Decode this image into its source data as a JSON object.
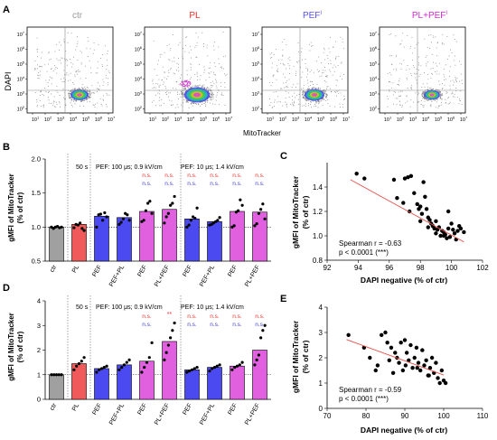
{
  "panelA": {
    "letter": "A",
    "titles": [
      {
        "text": "ctr",
        "color": "#9a9a9a"
      },
      {
        "text": "PL",
        "color": "#e8322b"
      },
      {
        "text": "PEF",
        "sup": "I",
        "color": "#5b52f0"
      },
      {
        "text": "PL+PEF",
        "sup": "I",
        "color": "#d02ad0"
      }
    ],
    "ylabel": "DAPI",
    "xlabel": "MitoTracker",
    "yticks": [
      "10^7",
      "10^6",
      "10^5",
      "10^4",
      "10^3",
      "10^2"
    ],
    "xticks": [
      "10^1",
      "10^2",
      "10^3",
      "10^4",
      "10^5",
      "10^6",
      "10^7"
    ]
  },
  "panelB": {
    "letter": "B",
    "ylabel_line1": "gMFI of MitoTracker",
    "ylabel_line2": "(% of ctr)",
    "yticks": [
      "2.0",
      "1.5",
      "1.0",
      "0.5"
    ],
    "groups_text": {
      "g1": "50 s",
      "g2": "PEF: 100 μs; 0.9 kV/cm",
      "g3": "PEF: 10 μs; 1.4 kV/cm"
    },
    "xlabels": [
      "ctr",
      "PL",
      "PEF",
      "PEF+PL",
      "PEF",
      "PL+PEF",
      "PEF",
      "PEF+PL",
      "PEF",
      "PL+PEF"
    ],
    "sig": [
      {
        "bar": 5,
        "red": "n.s.",
        "blue": "n.s."
      },
      {
        "bar": 6,
        "red": "n.s.",
        "blue": "n.s."
      },
      {
        "bar": 7,
        "red": "n.s.",
        "blue": "n.s."
      },
      {
        "bar": 8,
        "red": "n.s.",
        "blue": "n.s."
      },
      {
        "bar": 9,
        "red": "n.s.",
        "blue": "n.s."
      },
      {
        "bar": 10,
        "red": "n.s.",
        "blue": "n.s."
      }
    ]
  },
  "panelC": {
    "letter": "C",
    "ylabel_line1": "gMFI of MitoTracker",
    "ylabel_line2": "(% of ctr)",
    "xlabel": "DAPI negative (% of ctr)",
    "xticks": [
      "92",
      "94",
      "96",
      "98",
      "100",
      "102"
    ],
    "yticks": [
      "1.4",
      "1.2",
      "1.0",
      "0.8"
    ],
    "stat_line1": "Spearman r = -0.63",
    "stat_line2": "p < 0.0001 (***)"
  },
  "panelD": {
    "letter": "D",
    "ylabel_line1": "gMFI of MitoTracker",
    "ylabel_line2": "(% of ctr)",
    "yticks": [
      "4",
      "3",
      "2",
      "1",
      "0"
    ],
    "groups_text": {
      "g1": "50 s",
      "g2": "PEF: 100 μs; 0.9 kV/cm",
      "g3": "PEF: 10 μs; 1.4 kV/cm"
    },
    "xlabels": [
      "ctr",
      "PL",
      "PEF",
      "PEF+PL",
      "PEF",
      "PL+PEF",
      "PEF",
      "PEF+PL",
      "PEF",
      "PL+PEF"
    ],
    "sig_top": "**",
    "sig": [
      {
        "bar": 5,
        "red": "n.s.",
        "blue": "n.s."
      },
      {
        "bar": 7,
        "red": "n.s.",
        "blue": "n.s."
      },
      {
        "bar": 8,
        "red": "n.s.",
        "blue": "n.s."
      },
      {
        "bar": 9,
        "red": "n.s.",
        "blue": "n.s."
      },
      {
        "bar": 10,
        "red": "n.s.",
        "blue": "n.s."
      }
    ]
  },
  "panelE": {
    "letter": "E",
    "ylabel_line1": "gMFI of MitoTracker",
    "ylabel_line2": "(% of ctr)",
    "xlabel": "DAPI negative (% of ctr)",
    "xticks": [
      "70",
      "80",
      "90",
      "100",
      "110"
    ],
    "yticks": [
      "4",
      "3",
      "2",
      "1",
      "0"
    ],
    "stat_line1": "Spearman r = -0.59",
    "stat_line2": "p < 0.0001 (***)"
  },
  "chart_data": [
    {
      "type": "bar",
      "panel": "B",
      "categories": [
        "ctr",
        "PL",
        "PEF",
        "PEF+PL",
        "PEF",
        "PL+PEF",
        "PEF",
        "PEF+PL",
        "PEF",
        "PL+PEF"
      ],
      "values": [
        1.0,
        1.04,
        1.16,
        1.14,
        1.23,
        1.26,
        1.12,
        1.08,
        1.23,
        1.22
      ],
      "colors": [
        "#a0a0a0",
        "#f05a5a",
        "#4a4af0",
        "#4a4af0",
        "#e060e0",
        "#e060e0",
        "#4a4af0",
        "#4a4af0",
        "#e060e0",
        "#e060e0"
      ],
      "points": [
        [
          1.0,
          0.98,
          1.0,
          1.01,
          0.99,
          1.0
        ],
        [
          0.99,
          1.04,
          1.03,
          1.06,
          0.98,
          0.95
        ],
        [
          1.0,
          1.18,
          1.19,
          1.1,
          1.21,
          1.15
        ],
        [
          1.04,
          1.07,
          1.12,
          1.2,
          1.18,
          1.1
        ],
        [
          1.08,
          1.1,
          1.24,
          1.35,
          1.38,
          1.2
        ],
        [
          1.06,
          1.15,
          1.2,
          1.32,
          1.35,
          1.45
        ],
        [
          1.0,
          1.03,
          1.1,
          1.15,
          1.13,
          1.28
        ],
        [
          1.03,
          1.04,
          1.06,
          1.08,
          1.1,
          1.14
        ],
        [
          1.0,
          1.02,
          1.22,
          1.24,
          1.4,
          1.32
        ],
        [
          1.02,
          1.05,
          1.2,
          1.26,
          1.34,
          1.12
        ]
      ],
      "ylim": [
        0.5,
        2.0
      ],
      "reference_line": 1.0
    },
    {
      "type": "scatter",
      "panel": "C",
      "x": [
        93.9,
        94.4,
        96.3,
        96.5,
        96.9,
        97.0,
        97.2,
        97.4,
        97.6,
        97.8,
        97.9,
        98.0,
        98.1,
        98.2,
        98.3,
        98.4,
        98.5,
        98.6,
        98.7,
        98.8,
        98.9,
        99.0,
        99.1,
        99.2,
        99.3,
        99.4,
        99.5,
        99.6,
        99.7,
        99.8,
        99.9,
        100.0,
        100.1,
        100.2,
        100.3,
        100.4,
        100.6,
        100.8,
        97.3,
        98.5,
        99.0,
        99.5,
        98.0,
        99.8,
        100.5
      ],
      "y": [
        1.51,
        1.47,
        1.46,
        1.31,
        1.27,
        1.47,
        1.48,
        1.49,
        1.35,
        1.26,
        1.22,
        1.24,
        1.18,
        1.44,
        1.32,
        1.22,
        1.15,
        1.13,
        1.1,
        1.08,
        1.06,
        1.02,
        1.05,
        1.07,
        1.0,
        1.04,
        1.03,
        1.01,
        0.98,
        1.06,
        0.99,
        1.1,
        1.05,
        1.02,
        0.97,
        1.04,
        1.06,
        1.03,
        1.2,
        1.07,
        1.12,
        1.0,
        1.12,
        1.2,
        1.08
      ],
      "fit": {
        "x": [
          93.5,
          100.8
        ],
        "y": [
          1.46,
          0.95
        ]
      },
      "xlim": [
        92,
        102
      ],
      "ylim": [
        0.8,
        1.6
      ]
    },
    {
      "type": "bar",
      "panel": "D",
      "categories": [
        "ctr",
        "PL",
        "PEF",
        "PEF+PL",
        "PEF",
        "PL+PEF",
        "PEF",
        "PEF+PL",
        "PEF",
        "PL+PEF"
      ],
      "values": [
        1.0,
        1.45,
        1.25,
        1.4,
        1.55,
        2.35,
        1.2,
        1.3,
        1.35,
        2.0
      ],
      "colors": [
        "#a0a0a0",
        "#f05a5a",
        "#4a4af0",
        "#4a4af0",
        "#e060e0",
        "#e060e0",
        "#4a4af0",
        "#4a4af0",
        "#e060e0",
        "#e060e0"
      ],
      "points": [
        [
          1.0,
          1.0,
          1.0,
          1.0,
          1.0
        ],
        [
          1.2,
          1.35,
          1.45,
          1.55,
          1.7
        ],
        [
          1.1,
          1.2,
          1.25,
          1.3,
          1.35
        ],
        [
          1.2,
          1.3,
          1.4,
          1.5,
          1.6
        ],
        [
          1.1,
          1.3,
          1.5,
          1.7,
          2.3
        ],
        [
          1.6,
          1.9,
          2.2,
          2.5,
          2.8,
          3.1
        ],
        [
          1.1,
          1.15,
          1.2,
          1.25,
          1.3
        ],
        [
          1.15,
          1.25,
          1.3,
          1.35,
          1.4
        ],
        [
          1.2,
          1.3,
          1.35,
          1.4,
          1.5
        ],
        [
          1.4,
          1.6,
          1.8,
          2.5,
          2.8,
          3.0
        ]
      ],
      "ylim": [
        0,
        4
      ],
      "reference_line": 1.0
    },
    {
      "type": "scatter",
      "panel": "E",
      "x": [
        75.5,
        79.5,
        81.0,
        82.5,
        83.0,
        84.0,
        85.0,
        85.5,
        86.0,
        87.0,
        87.5,
        88.0,
        88.5,
        89.0,
        89.5,
        90.0,
        90.5,
        91.0,
        91.5,
        92.0,
        92.5,
        93.0,
        93.5,
        94.0,
        94.5,
        95.0,
        95.5,
        96.0,
        96.5,
        97.0,
        97.5,
        98.0,
        98.5,
        99.0,
        99.5,
        100.0,
        100.5,
        86.5,
        90.2,
        93.2,
        96.2
      ],
      "y": [
        2.9,
        2.4,
        2.0,
        1.5,
        1.7,
        2.9,
        3.0,
        2.6,
        1.9,
        1.4,
        2.2,
        2.0,
        1.8,
        2.6,
        1.5,
        2.7,
        2.2,
        1.9,
        2.5,
        1.6,
        2.0,
        2.4,
        1.8,
        1.5,
        2.3,
        1.7,
        1.9,
        1.3,
        1.6,
        2.0,
        1.4,
        1.8,
        1.2,
        1.0,
        1.5,
        1.1,
        1.0,
        2.4,
        1.7,
        1.6,
        1.3
      ],
      "fit": {
        "x": [
          75,
          100
        ],
        "y": [
          2.72,
          1.32
        ]
      },
      "xlim": [
        70,
        110
      ],
      "ylim": [
        0,
        4
      ]
    }
  ]
}
